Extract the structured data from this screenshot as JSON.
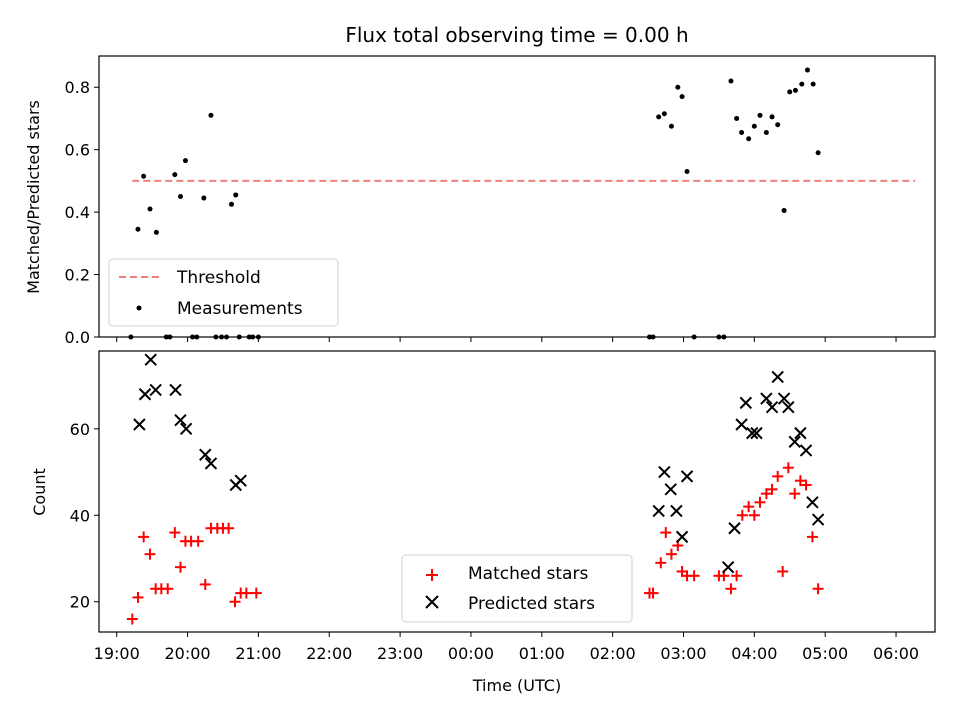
{
  "chart_data": [
    {
      "type": "scatter",
      "title": "Flux total observing time = 0.00 h",
      "ylabel": "Matched/Predicted stars",
      "xlabel": "",
      "ylim": [
        0,
        0.9
      ],
      "yticks": [
        "0.0",
        "0.2",
        "0.4",
        "0.6",
        "0.8"
      ],
      "xlim": [
        -0.25,
        11.55
      ],
      "threshold": {
        "name": "Threshold",
        "value": 0.5,
        "x": [
          0.22,
          11.27
        ],
        "color": "#f08080"
      },
      "legend": {
        "placement": "lower-left",
        "entries": [
          "Threshold",
          "Measurements"
        ]
      },
      "series": [
        {
          "name": "Measurements",
          "color": "#000000",
          "x": [
            0.2,
            0.3,
            0.38,
            0.47,
            0.56,
            0.7,
            0.75,
            0.82,
            0.9,
            0.97,
            1.07,
            1.13,
            1.23,
            1.33,
            1.4,
            1.48,
            1.55,
            1.62,
            1.68,
            1.73,
            1.87,
            1.92,
            2.0,
            7.52,
            7.57,
            7.65,
            7.73,
            7.83,
            7.92,
            7.98,
            8.05,
            8.15,
            8.5,
            8.57,
            8.67,
            8.75,
            8.82,
            8.92,
            9.0,
            9.08,
            9.17,
            9.25,
            9.33,
            9.42,
            9.5,
            9.58,
            9.67,
            9.75,
            9.83,
            9.9
          ],
          "y": [
            0.0,
            0.345,
            0.515,
            0.41,
            0.335,
            0.0,
            0.0,
            0.52,
            0.45,
            0.565,
            0.0,
            0.0,
            0.445,
            0.71,
            0.0,
            0.0,
            0.0,
            0.425,
            0.455,
            0.0,
            0.0,
            0.0,
            0.0,
            0.0,
            0.0,
            0.705,
            0.715,
            0.675,
            0.8,
            0.77,
            0.53,
            0.0,
            0.0,
            0.0,
            0.82,
            0.7,
            0.655,
            0.635,
            0.675,
            0.71,
            0.655,
            0.705,
            0.68,
            0.405,
            0.785,
            0.79,
            0.81,
            0.855,
            0.81,
            0.59
          ]
        }
      ]
    },
    {
      "type": "scatter",
      "title": "",
      "xlabel": "Time (UTC)",
      "ylabel": "Count",
      "ylim": [
        13,
        78
      ],
      "yticks": [
        "20",
        "40",
        "60"
      ],
      "xlim": [
        -0.25,
        11.55
      ],
      "xticks": [
        "19:00",
        "20:00",
        "21:00",
        "22:00",
        "23:00",
        "00:00",
        "01:00",
        "02:00",
        "03:00",
        "04:00",
        "05:00",
        "06:00"
      ],
      "legend": {
        "placement": "lower-center",
        "entries": [
          "Matched stars",
          "Predicted stars"
        ]
      },
      "series": [
        {
          "name": "Matched stars",
          "marker": "plus",
          "color": "#ff0000",
          "x": [
            0.22,
            0.3,
            0.38,
            0.47,
            0.55,
            0.63,
            0.72,
            0.82,
            0.9,
            0.97,
            1.05,
            1.15,
            1.25,
            1.33,
            1.42,
            1.5,
            1.58,
            1.67,
            1.75,
            1.83,
            1.97,
            7.52,
            7.57,
            7.68,
            7.75,
            7.83,
            7.92,
            7.98,
            8.05,
            8.15,
            8.5,
            8.57,
            8.67,
            8.75,
            8.83,
            8.92,
            9.0,
            9.08,
            9.17,
            9.25,
            9.33,
            9.4,
            9.48,
            9.57,
            9.65,
            9.73,
            9.82,
            9.9
          ],
          "y": [
            16,
            21,
            35,
            31,
            23,
            23,
            23,
            36,
            28,
            34,
            34,
            34,
            24,
            37,
            37,
            37,
            37,
            20,
            22,
            22,
            22,
            22,
            22,
            29,
            36,
            31,
            33,
            27,
            26,
            26,
            26,
            26,
            23,
            26,
            40,
            42,
            40,
            43,
            45,
            46,
            49,
            27,
            51,
            45,
            48,
            47,
            35,
            23
          ]
        },
        {
          "name": "Predicted stars",
          "marker": "x",
          "color": "#000000",
          "x": [
            0.32,
            0.4,
            0.48,
            0.55,
            0.83,
            0.9,
            0.98,
            1.25,
            1.33,
            1.68,
            1.75,
            7.65,
            7.73,
            7.82,
            7.9,
            7.98,
            8.05,
            8.63,
            8.72,
            8.82,
            8.88,
            8.97,
            9.03,
            9.17,
            9.25,
            9.33,
            9.42,
            9.48,
            9.57,
            9.65,
            9.73,
            9.82,
            9.9
          ],
          "y": [
            61,
            68,
            76,
            69,
            69,
            62,
            60,
            54,
            52,
            47,
            48,
            41,
            50,
            46,
            41,
            35,
            49,
            28,
            37,
            61,
            66,
            59,
            59,
            67,
            65,
            72,
            67,
            65,
            57,
            59,
            55,
            43,
            39
          ]
        }
      ]
    }
  ]
}
